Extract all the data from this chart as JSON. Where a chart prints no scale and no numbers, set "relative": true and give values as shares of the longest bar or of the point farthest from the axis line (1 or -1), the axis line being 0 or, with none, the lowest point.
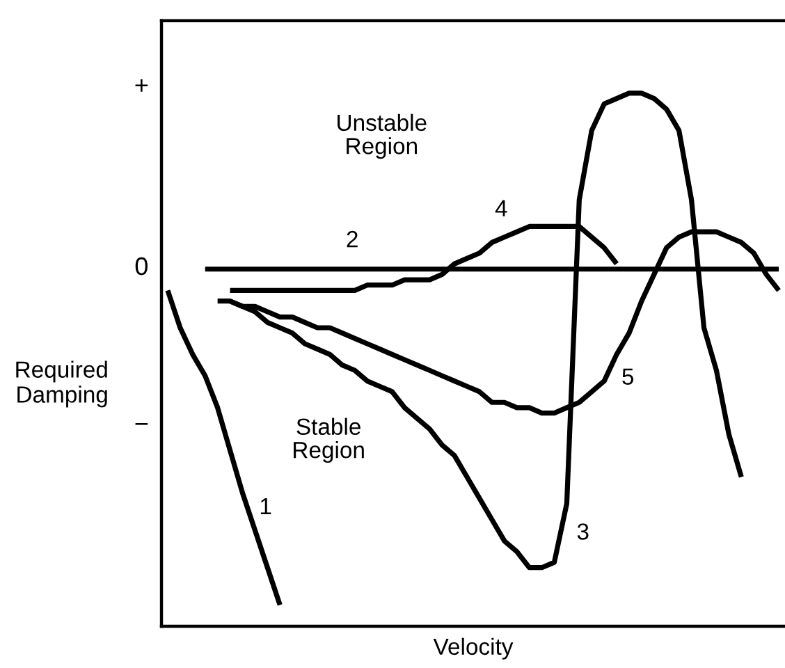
{
  "chart_data": {
    "type": "line",
    "relative": true,
    "xlabel": "Velocity",
    "ylabel": "Required\nDamping",
    "tick_labels": false,
    "grid": false,
    "marker": "none",
    "line_style": "solid",
    "categories": [
      null,
      null,
      null,
      null,
      null,
      null,
      null,
      null,
      null,
      null,
      null,
      null,
      null,
      null,
      null,
      null,
      null,
      null,
      null,
      null,
      null,
      null,
      null,
      null,
      null,
      null,
      null,
      null,
      null,
      null,
      null,
      null,
      null,
      null,
      null,
      null,
      null,
      null,
      null,
      null,
      null,
      null,
      null,
      null,
      null,
      null,
      null,
      null,
      null,
      null
    ],
    "series": [
      {
        "name": "1",
        "color": "#000000",
        "values": [
          0.63,
          0.56,
          0.51,
          0.47,
          0.41,
          0.33,
          0.25,
          0.18,
          0.11,
          0.04,
          null,
          null,
          null,
          null,
          null,
          null,
          null,
          null,
          null,
          null,
          null,
          null,
          null,
          null,
          null,
          null,
          null,
          null,
          null,
          null,
          null,
          null,
          null,
          null,
          null,
          null,
          null,
          null,
          null,
          null,
          null,
          null,
          null,
          null,
          null,
          null,
          null,
          null,
          null,
          null
        ]
      },
      {
        "name": "2",
        "color": "#000000",
        "values": [
          null,
          null,
          null,
          0.67,
          0.67,
          0.67,
          0.67,
          0.67,
          0.67,
          0.67,
          0.67,
          0.67,
          0.67,
          0.67,
          0.67,
          0.67,
          0.67,
          0.67,
          0.67,
          0.67,
          0.67,
          0.67,
          0.67,
          0.67,
          0.67,
          0.67,
          0.67,
          0.67,
          0.67,
          0.67,
          0.67,
          0.67,
          0.67,
          0.67,
          0.67,
          0.67,
          0.67,
          0.67,
          0.67,
          0.67,
          0.67,
          0.67,
          0.67,
          0.67,
          0.67,
          0.67,
          0.67,
          0.67,
          0.67,
          0.67
        ]
      },
      {
        "name": "3",
        "color": "#000000",
        "values": [
          null,
          null,
          null,
          null,
          null,
          0.61,
          0.6,
          0.59,
          0.57,
          0.56,
          0.55,
          0.53,
          0.52,
          0.51,
          0.49,
          0.48,
          0.46,
          0.45,
          0.44,
          0.41,
          0.39,
          0.37,
          0.34,
          0.32,
          0.28,
          0.24,
          0.2,
          0.16,
          0.14,
          0.11,
          0.11,
          0.12,
          0.23,
          0.8,
          0.93,
          0.98,
          0.99,
          1,
          1,
          0.99,
          0.97,
          0.93,
          0.8,
          0.56,
          0.48,
          0.36,
          0.28,
          null,
          null,
          null
        ]
      },
      {
        "name": "4",
        "color": "#000000",
        "values": [
          null,
          null,
          null,
          null,
          null,
          0.63,
          0.63,
          0.63,
          0.63,
          0.63,
          0.63,
          0.63,
          0.63,
          0.63,
          0.63,
          0.63,
          0.64,
          0.64,
          0.64,
          0.65,
          0.65,
          0.65,
          0.66,
          0.68,
          0.69,
          0.7,
          0.72,
          0.73,
          0.74,
          0.75,
          0.75,
          0.75,
          0.75,
          0.75,
          0.73,
          0.71,
          0.68,
          null,
          null,
          null,
          null,
          null,
          null,
          null,
          null,
          null,
          null,
          null,
          null,
          null
        ]
      },
      {
        "name": "5",
        "color": "#000000",
        "values": [
          null,
          null,
          null,
          null,
          0.61,
          0.61,
          0.6,
          0.6,
          0.59,
          0.58,
          0.58,
          0.57,
          0.56,
          0.56,
          0.55,
          0.54,
          0.53,
          0.52,
          0.51,
          0.5,
          0.49,
          0.48,
          0.47,
          0.46,
          0.45,
          0.44,
          0.42,
          0.42,
          0.41,
          0.41,
          0.4,
          0.4,
          0.41,
          0.42,
          0.44,
          0.46,
          0.51,
          0.55,
          0.61,
          0.66,
          0.71,
          0.73,
          0.74,
          0.74,
          0.74,
          0.73,
          0.72,
          0.7,
          0.66,
          0.63
        ]
      }
    ],
    "annotations": [
      "Unstable\nRegion",
      "Stable\nRegion",
      "+",
      "0",
      "−"
    ]
  }
}
